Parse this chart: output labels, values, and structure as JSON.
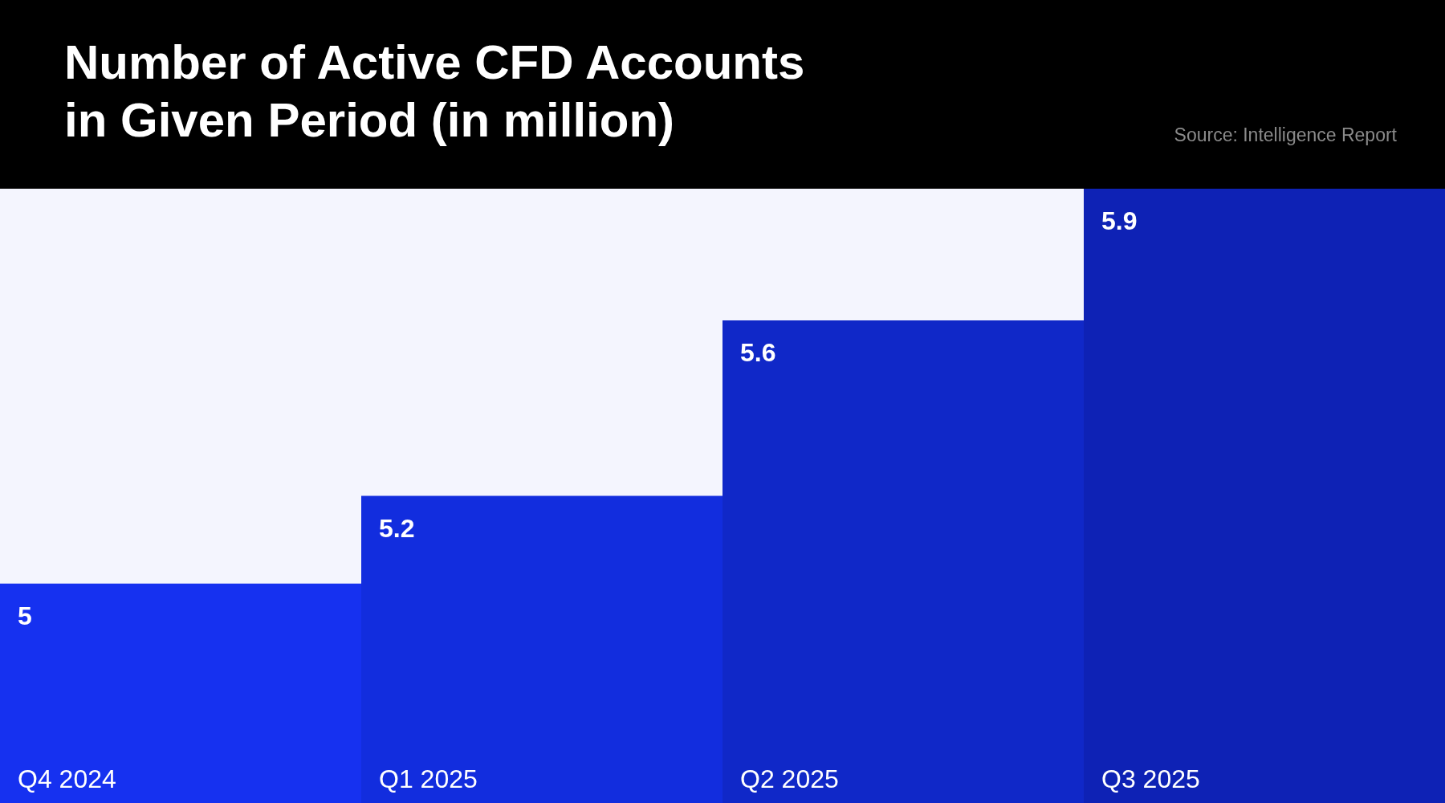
{
  "chart_data": {
    "type": "bar",
    "title": "Number of Active CFD Accounts in Given Period (in million)",
    "annotations": [
      "Source: Intelligence Report"
    ],
    "categories": [
      "Q4 2024",
      "Q1 2025",
      "Q2 2025",
      "Q3 2025"
    ],
    "values": [
      5,
      5.2,
      5.6,
      5.9
    ],
    "colors": [
      "#1631f0",
      "#122dde",
      "#1028c8",
      "#0e22b5"
    ],
    "ylim": [
      4.5,
      5.9
    ],
    "data_labels": true,
    "grid": false
  }
}
